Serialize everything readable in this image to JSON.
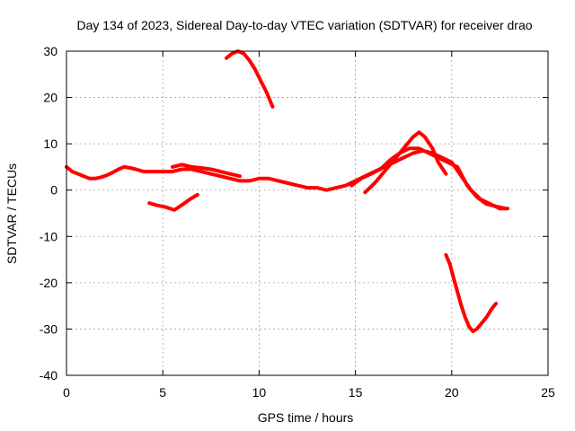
{
  "chart_data": {
    "type": "line",
    "title": "Day 134 of 2023, Sidereal Day-to-day VTEC variation (SDTVAR) for receiver drao",
    "xlabel": "GPS time / hours",
    "ylabel": "SDTVAR / TECUs",
    "xlim": [
      0,
      25
    ],
    "ylim": [
      -40,
      30
    ],
    "xticks": [
      0,
      5,
      10,
      15,
      20,
      25
    ],
    "yticks": [
      -40,
      -30,
      -20,
      -10,
      0,
      10,
      20,
      30
    ],
    "grid": true,
    "color": "#ff0000",
    "series": [
      {
        "name": "trace-main",
        "x": [
          0,
          0.3,
          0.6,
          0.9,
          1.2,
          1.5,
          1.8,
          2.1,
          2.4,
          2.7,
          3.0,
          3.3,
          3.6,
          4.0,
          4.5,
          5.0,
          5.5,
          6.0,
          6.5,
          7.0,
          7.5,
          8.0,
          8.5,
          9.0,
          9.5,
          10.0,
          10.5,
          11.0,
          11.5,
          12.0,
          12.5,
          13.0,
          13.5,
          14.0,
          14.5,
          15.0,
          15.5,
          16.0,
          16.5,
          17.0,
          17.5,
          18.0,
          18.5,
          19.0,
          19.5,
          20.0,
          20.5,
          21.0,
          21.5,
          22.0,
          22.5,
          22.9
        ],
        "y": [
          5,
          4,
          3.5,
          3,
          2.5,
          2.5,
          2.8,
          3.2,
          3.8,
          4.5,
          5,
          4.8,
          4.5,
          4,
          4,
          4,
          4,
          4.5,
          4.5,
          4,
          3.5,
          3,
          2.5,
          2,
          2,
          2.5,
          2.5,
          2,
          1.5,
          1,
          0.5,
          0.5,
          0,
          0.5,
          1,
          2,
          3,
          4,
          5,
          6,
          7,
          8,
          8.5,
          8,
          7,
          6,
          3,
          0,
          -2,
          -3,
          -4,
          -4
        ]
      },
      {
        "name": "trace-upper-late",
        "x": [
          14.8,
          15.3,
          15.8,
          16.3,
          16.8,
          17.3,
          17.8,
          18.3,
          18.8,
          19.3,
          19.8,
          20.3,
          20.8,
          21.3,
          21.8,
          22.3,
          22.8
        ],
        "y": [
          1,
          2.5,
          3.5,
          4.5,
          6.5,
          8,
          9,
          9,
          8,
          7,
          6,
          5,
          1,
          -1.5,
          -3,
          -3.5,
          -4
        ]
      },
      {
        "name": "trace-rise",
        "x": [
          15.5,
          16.0,
          16.5,
          17.0,
          17.5,
          18.0,
          18.3,
          18.6,
          19.0,
          19.3,
          19.7
        ],
        "y": [
          -0.5,
          1.5,
          4,
          6.5,
          9,
          11.5,
          12.5,
          11.5,
          9,
          6,
          3.5
        ]
      },
      {
        "name": "trace-low-early",
        "x": [
          4.3,
          4.7,
          5.1,
          5.6,
          6.0,
          6.4,
          6.8
        ],
        "y": [
          -2.8,
          -3.3,
          -3.6,
          -4.3,
          -3.2,
          -2,
          -1
        ]
      },
      {
        "name": "trace-high-arc",
        "x": [
          8.3,
          8.6,
          8.9,
          9.2,
          9.5,
          9.8,
          10.1,
          10.4,
          10.7
        ],
        "y": [
          28.5,
          29.5,
          30,
          29.5,
          28,
          26,
          23.5,
          21,
          18
        ]
      },
      {
        "name": "trace-deep-dip",
        "x": [
          19.7,
          19.9,
          20.1,
          20.3,
          20.5,
          20.7,
          20.9,
          21.1,
          21.3,
          21.5,
          21.8,
          22.1,
          22.3
        ],
        "y": [
          -14,
          -16,
          -19,
          -22,
          -25,
          -27.5,
          -29.5,
          -30.5,
          -30,
          -29,
          -27.5,
          -25.5,
          -24.5
        ]
      },
      {
        "name": "trace-mid-band",
        "x": [
          5.5,
          6.0,
          6.5,
          7.0,
          7.5,
          8.0,
          8.5,
          9.0
        ],
        "y": [
          5,
          5.5,
          5,
          4.8,
          4.5,
          4,
          3.5,
          3
        ]
      }
    ]
  }
}
